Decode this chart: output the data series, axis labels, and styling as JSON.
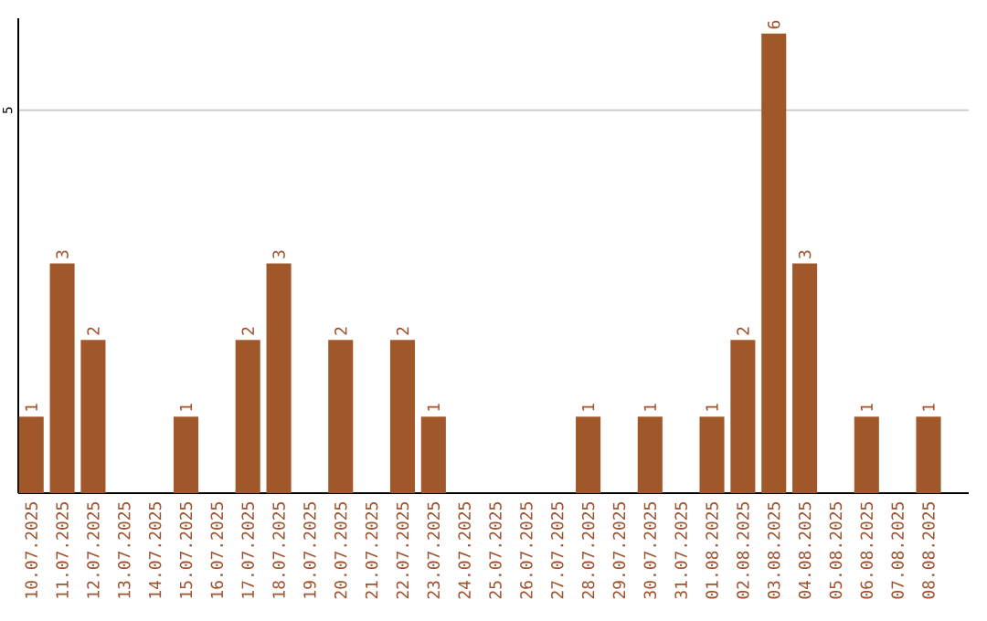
{
  "chart_data": {
    "type": "bar",
    "categories": [
      "10.07.2025",
      "11.07.2025",
      "12.07.2025",
      "13.07.2025",
      "14.07.2025",
      "15.07.2025",
      "16.07.2025",
      "17.07.2025",
      "18.07.2025",
      "19.07.2025",
      "20.07.2025",
      "21.07.2025",
      "22.07.2025",
      "23.07.2025",
      "24.07.2025",
      "25.07.2025",
      "26.07.2025",
      "27.07.2025",
      "28.07.2025",
      "29.07.2025",
      "30.07.2025",
      "31.07.2025",
      "01.08.2025",
      "02.08.2025",
      "03.08.2025",
      "04.08.2025",
      "05.08.2025",
      "06.08.2025",
      "07.08.2025",
      "08.08.2025"
    ],
    "values": [
      1,
      3,
      2,
      0,
      0,
      1,
      0,
      2,
      3,
      0,
      2,
      0,
      2,
      1,
      0,
      0,
      0,
      0,
      1,
      0,
      1,
      0,
      1,
      2,
      6,
      3,
      0,
      1,
      0,
      1
    ],
    "value_labels": [
      "1",
      "3",
      "2",
      null,
      null,
      "1",
      null,
      "2",
      "3",
      null,
      "2",
      null,
      "2",
      "1",
      null,
      null,
      null,
      null,
      "1",
      null,
      "1",
      null,
      "1",
      "2",
      "6",
      "3",
      null,
      "1",
      null,
      "1"
    ],
    "color": "#a0582b",
    "ylim": [
      0,
      6.2
    ],
    "yticks": [
      5
    ],
    "grid": "y"
  }
}
